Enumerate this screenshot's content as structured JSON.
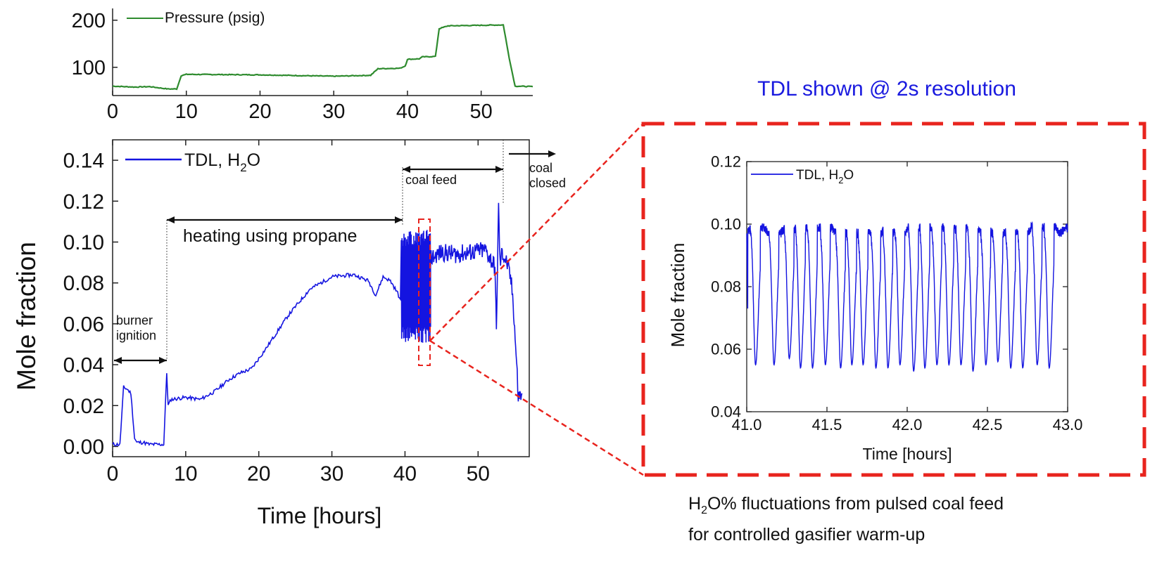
{
  "chart_data": [
    {
      "id": "pressure",
      "type": "line",
      "legend": "Pressure (psig)",
      "color": "#2e8b2e",
      "xlim": [
        0,
        57
      ],
      "ylim": [
        40,
        225
      ],
      "xticks": [
        0,
        10,
        20,
        30,
        40,
        50
      ],
      "yticks": [
        100,
        200
      ],
      "series": [
        {
          "name": "Pressure (psig)",
          "x": [
            0,
            3,
            5,
            7.5,
            8.7,
            9.3,
            10,
            20,
            30,
            35,
            36,
            39,
            39.7,
            40,
            41.6,
            42,
            43.8,
            44.3,
            45.5,
            53,
            53.8,
            54.6,
            57
          ],
          "y": [
            60,
            58,
            59,
            54,
            54,
            82,
            85,
            84,
            81,
            83,
            97,
            98,
            103,
            117,
            118,
            122,
            123,
            182,
            188,
            190,
            120,
            60,
            59
          ]
        }
      ]
    },
    {
      "id": "tdl-overview",
      "type": "line",
      "legend": "TDL, H",
      "legend_sub": "2",
      "legend_end": "O",
      "xlabel": "Time [hours]",
      "ylabel": "Mole fraction",
      "color": "#1414e0",
      "xlim": [
        0,
        57
      ],
      "ylim": [
        -0.005,
        0.15
      ],
      "xticks": [
        0,
        10,
        20,
        30,
        40,
        50
      ],
      "yticks": [
        0.0,
        0.02,
        0.04,
        0.06,
        0.08,
        0.1,
        0.12,
        0.14
      ],
      "ytick_labels": [
        "0.00",
        "0.02",
        "0.04",
        "0.06",
        "0.08",
        "0.10",
        "0.12",
        "0.14"
      ],
      "annotations": {
        "burner_ignition": "burner\nignition",
        "heating": "heating using propane",
        "coal_feed": "coal feed",
        "coal_closed": "coal\nclosed"
      },
      "series": [
        {
          "name": "TDL, H2O",
          "x": [
            0,
            1,
            1.5,
            2,
            2.5,
            3,
            3.3,
            3.8,
            4.2,
            5,
            6,
            7,
            7.4,
            7.6,
            8,
            10,
            12,
            14,
            16,
            17.5,
            19,
            21,
            24,
            27,
            30,
            33,
            35,
            36,
            37,
            38,
            39,
            39.5
          ],
          "y": [
            0.001,
            0.001,
            0.029,
            0.028,
            0.026,
            0.004,
            0.002,
            0.002,
            0.002,
            0.001,
            0.001,
            0.001,
            0.036,
            0.02,
            0.023,
            0.024,
            0.023,
            0.027,
            0.033,
            0.036,
            0.038,
            0.048,
            0.064,
            0.077,
            0.083,
            0.084,
            0.081,
            0.074,
            0.083,
            0.081,
            0.075,
            0.07
          ]
        }
      ],
      "pulse_region": {
        "x_start": 39.5,
        "x_end": 43.5,
        "y_high": 0.102,
        "y_low": 0.053
      },
      "coal_region": {
        "x": [
          43.5,
          45,
          47,
          49,
          51,
          52.3,
          52.5,
          52.8,
          53.0,
          53.3,
          54,
          54.5,
          54.8,
          55.2,
          55.5,
          56
        ],
        "y": [
          0.092,
          0.095,
          0.094,
          0.095,
          0.096,
          0.088,
          0.056,
          0.117,
          0.089,
          0.095,
          0.089,
          0.081,
          0.071,
          0.045,
          0.024,
          0.026
        ]
      }
    },
    {
      "id": "tdl-zoom",
      "type": "line",
      "title": "TDL shown @ 2s resolution",
      "legend": "TDL, H",
      "legend_sub": "2",
      "legend_end": "O",
      "xlabel": "Time [hours]",
      "ylabel": "Mole fraction",
      "color": "#1414e0",
      "xlim": [
        41.0,
        43.0
      ],
      "ylim": [
        0.04,
        0.12
      ],
      "xticks": [
        41.0,
        41.5,
        42.0,
        42.5,
        43.0
      ],
      "xtick_labels": [
        "41.0",
        "41.5",
        "42.0",
        "42.5",
        "43.0"
      ],
      "yticks": [
        0.04,
        0.06,
        0.08,
        0.1,
        0.12
      ],
      "ytick_labels": [
        "0.04",
        "0.06",
        "0.08",
        "0.10",
        "0.12"
      ],
      "series": [
        {
          "name": "TDL, H2O",
          "dip_times": [
            41.055,
            41.17,
            41.265,
            41.335,
            41.41,
            41.49,
            41.585,
            41.655,
            41.725,
            41.805,
            41.88,
            41.955,
            42.04,
            42.11,
            42.185,
            42.26,
            42.335,
            42.41,
            42.49,
            42.565,
            42.645,
            42.72,
            42.81,
            42.885
          ],
          "dip_mins": [
            0.055,
            0.055,
            0.057,
            0.054,
            0.054,
            0.055,
            0.054,
            0.055,
            0.055,
            0.054,
            0.054,
            0.055,
            0.053,
            0.054,
            0.055,
            0.055,
            0.055,
            0.053,
            0.055,
            0.056,
            0.054,
            0.054,
            0.055,
            0.054
          ],
          "baseline": 0.098
        }
      ]
    }
  ],
  "caption": {
    "line1_a": "H",
    "line1_sub": "2",
    "line1_b": "O% fluctuations from pulsed coal feed",
    "line2": "for controlled gasifier warm-up"
  }
}
